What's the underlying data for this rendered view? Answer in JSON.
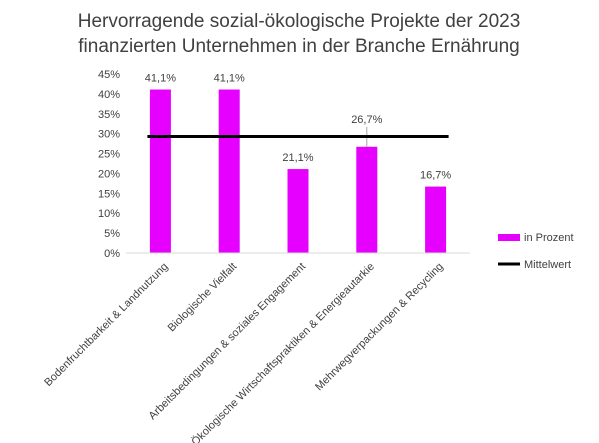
{
  "chart_data": {
    "type": "bar",
    "title": [
      "Hervorragende sozial-ökologische Projekte der 2023",
      "finanzierten Unternehmen in der Branche Ernährung"
    ],
    "categories": [
      "Bodenfruchtbarkeit & Landnutzung",
      "Biologische Vielfalt",
      "Arbeitsbedingungen & soziales Engagement",
      "Ökologische Wirtschaftspraktiken & Energieautarkie",
      "Mehrwegverpackungen & Recycling"
    ],
    "series": [
      {
        "name": "in Prozent",
        "values": [
          41.1,
          41.1,
          21.1,
          26.7,
          16.7
        ],
        "color": "#e600ff"
      }
    ],
    "data_labels": [
      "41,1%",
      "41,1%",
      "21,1%",
      "26,7%",
      "16,7%"
    ],
    "reference_line": {
      "name": "Mittelwert",
      "value": 29.3,
      "color": "#000000"
    },
    "ylim": [
      0,
      45
    ],
    "yticks": [
      {
        "value": 0,
        "label": "0%"
      },
      {
        "value": 5,
        "label": "5%"
      },
      {
        "value": 10,
        "label": "10%"
      },
      {
        "value": 15,
        "label": "15%"
      },
      {
        "value": 20,
        "label": "20%"
      },
      {
        "value": 25,
        "label": "25%"
      },
      {
        "value": 30,
        "label": "30%"
      },
      {
        "value": 35,
        "label": "35%"
      },
      {
        "value": 40,
        "label": "40%"
      },
      {
        "value": 45,
        "label": "45%"
      }
    ],
    "grid": false,
    "legend_position": "right"
  }
}
